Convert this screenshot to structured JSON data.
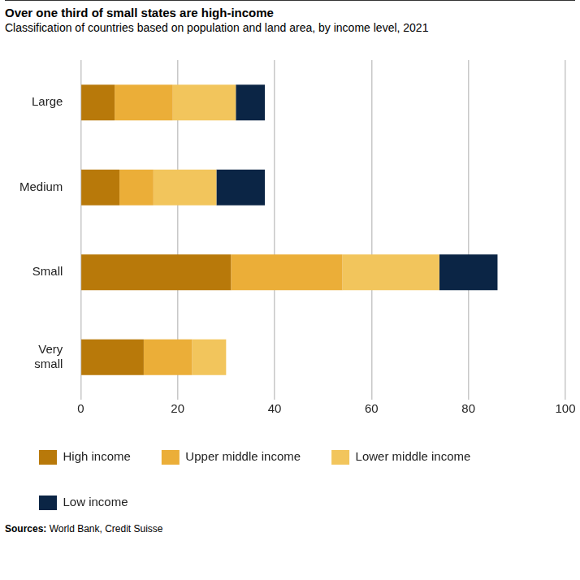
{
  "chart_data": {
    "type": "bar",
    "title": "Over one third of small states are high-income",
    "subtitle": "Classification of countries based on population and land area, by income level, 2021",
    "source": "Sources: World Bank, Credit Suisse",
    "categories": [
      "Large",
      "Medium",
      "Small",
      "Very small"
    ],
    "series": [
      {
        "name": "High income",
        "color": "#b8790a",
        "values": [
          7,
          8,
          31,
          13
        ]
      },
      {
        "name": "Upper middle income",
        "color": "#ebae38",
        "values": [
          12,
          7,
          23,
          10
        ]
      },
      {
        "name": "Lower middle income",
        "color": "#f2c55c",
        "values": [
          13,
          13,
          20,
          7
        ]
      },
      {
        "name": "Low income",
        "color": "#0b2545",
        "values": [
          6,
          10,
          12,
          0
        ]
      }
    ],
    "xlim": [
      0,
      100
    ],
    "xticks": [
      0,
      20,
      40,
      60,
      80,
      100
    ],
    "orientation": "horizontal",
    "stacked": true,
    "grid": true,
    "legend": "bottom"
  }
}
